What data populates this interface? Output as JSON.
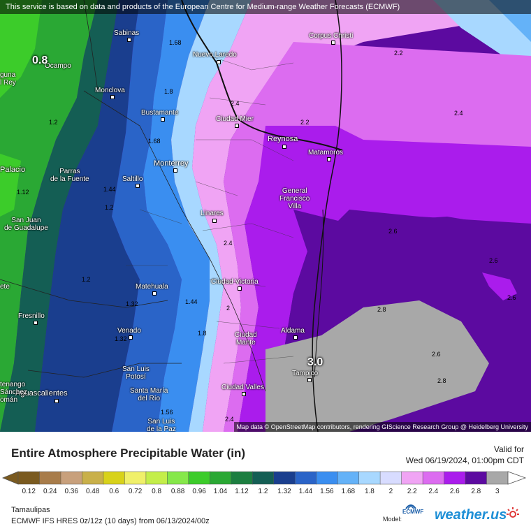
{
  "header_notice": "This service is based on data and products of the European Centre for Medium-range Weather Forecasts (ECMWF)",
  "map_attribution": "Map data © OpenStreetMap contributors, rendering GIScience Research Group @ Heidelberg University",
  "colors": {
    "c0_12": "#7a5a1f",
    "c0_24": "#a87c4a",
    "c0_36": "#c8a07c",
    "c0_48": "#c9b04a",
    "c0_6": "#d8d21a",
    "c0_72": "#f0f06a",
    "c0_8": "#c4ee4a",
    "c0_88": "#86e84a",
    "c0_96": "#3ccc2a",
    "c1_04": "#2aa834",
    "c1_12": "#1c7e40",
    "c1_2": "#145e54",
    "c1_32": "#1a3e8e",
    "c1_44": "#2a64c8",
    "c1_56": "#3a8ef0",
    "c1_68": "#64b2f8",
    "c1_8": "#a8d8ff",
    "c2": "#d8dcff",
    "c2_2": "#f0a4f4",
    "c2_4": "#dc6cf0",
    "c2_6": "#aa1cec",
    "c2_8": "#5c0aa0",
    "c3": "#a8a8a8"
  },
  "cities": [
    {
      "name": "Sabinas"
    },
    {
      "name": "Nuevo Laredo"
    },
    {
      "name": "Corpus Christi"
    },
    {
      "name": "Ocampo"
    },
    {
      "name": "Monclova"
    },
    {
      "name": "Bustamante"
    },
    {
      "name": "Ciudad Mier"
    },
    {
      "name": "Reynosa"
    },
    {
      "name": "Matamoros"
    },
    {
      "name": "Monterrey"
    },
    {
      "name": "Parras\nde la Fuente"
    },
    {
      "name": "Saltillo"
    },
    {
      "name": "General\nFrancisco\nVilla"
    },
    {
      "name": "San Juan\nde Guadalupe"
    },
    {
      "name": "Linares"
    },
    {
      "name": "Matehuala"
    },
    {
      "name": "Ciudad Victoria"
    },
    {
      "name": "Fresnillo"
    },
    {
      "name": "Venado"
    },
    {
      "name": "Aldama"
    },
    {
      "name": "Ciudad\nMante"
    },
    {
      "name": "Tampico"
    },
    {
      "name": "San Luis\nPotosí"
    },
    {
      "name": "Ciudad Valles"
    },
    {
      "name": "Aguascalientes"
    },
    {
      "name": "Santa María\ndel Río"
    },
    {
      "name": "San Luis\nde la Paz"
    },
    {
      "name": "Palacio"
    },
    {
      "name": "guna\nl Rey"
    },
    {
      "name": "tenango\nSánchez\nomán"
    },
    {
      "name": "ete"
    }
  ],
  "contour_labels": [
    "0.8",
    "1.68",
    "1.8",
    "2.2",
    "2.2",
    "2.4",
    "1.2",
    "2.4",
    "1.68",
    "1.12",
    "1.44",
    "1.2",
    "2.6",
    "2.4",
    "1.2",
    "2",
    "1.44",
    "1.32",
    "2.8",
    "2.6",
    "1.8",
    "1.32",
    "2.6",
    "2.8",
    "1.56",
    "2.4",
    "3.0",
    "2.6"
  ],
  "title": "Entire Atmosphere Precipitable Water (in)",
  "valid_label": "Valid for",
  "valid_time": "Wed 06/19/2024, 01:00pm CDT",
  "scale_ticks": [
    "0.12",
    "0.24",
    "0.36",
    "0.48",
    "0.6",
    "0.72",
    "0.8",
    "0.88",
    "0.96",
    "1.04",
    "1.12",
    "1.2",
    "1.32",
    "1.44",
    "1.56",
    "1.68",
    "1.8",
    "2",
    "2.2",
    "2.4",
    "2.6",
    "2.8",
    "3"
  ],
  "region": "Tamaulipas",
  "model_line": "ECMWF IFS HRES 0z/12z (10 days)  from  06/13/2024/00z",
  "model_label": "Model:",
  "ecmwf_logo_text": "ECMWF",
  "brand_text": "weather.us",
  "icons": {
    "ecmwf": "ecmwf-logo-icon",
    "brand": "sun-icon"
  }
}
